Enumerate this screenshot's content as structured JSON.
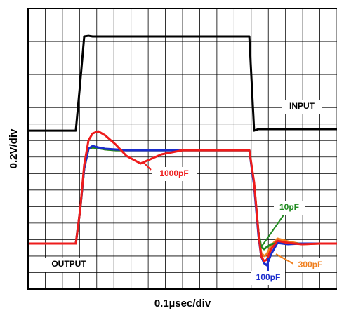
{
  "chart_data": {
    "type": "line",
    "x_label": "0.1µsec/div",
    "y_label": "0.2V/div",
    "output_label": "OUTPUT",
    "x": [
      0,
      2.78,
      3.03,
      3.27,
      3.52,
      3.76,
      4.09,
      4.5,
      5.11,
      5.73,
      6.55,
      7.77,
      9.0,
      12.89,
      13.17,
      13.42,
      13.58,
      13.75,
      13.91,
      14.16,
      14.53,
      15.14,
      15.96,
      16.98,
      18.0
    ],
    "series": [
      {
        "name": "INPUT",
        "color": "#000000",
        "values": [
          9.6,
          9.6,
          12.41,
          15.3,
          15.34,
          15.3,
          15.3,
          15.3,
          15.3,
          15.3,
          15.3,
          15.3,
          15.3,
          15.3,
          9.6,
          9.69,
          9.69,
          9.69,
          9.69,
          9.69,
          9.69,
          9.69,
          9.69,
          9.69,
          9.69
        ]
      },
      {
        "name": "300pF",
        "color": "#f07f1e",
        "values": [
          2.76,
          2.76,
          4.76,
          7.31,
          8.5,
          8.58,
          8.54,
          8.46,
          8.41,
          8.41,
          8.41,
          8.41,
          8.41,
          8.41,
          6.37,
          3.4,
          2.21,
          2.0,
          2.12,
          2.63,
          3.06,
          2.89,
          2.72,
          2.76,
          2.76
        ]
      },
      {
        "name": "10pF",
        "color": "#1f8a1f",
        "values": [
          2.76,
          2.76,
          4.76,
          7.31,
          8.5,
          8.58,
          8.54,
          8.46,
          8.41,
          8.41,
          8.41,
          8.41,
          8.41,
          8.41,
          6.37,
          3.48,
          2.55,
          2.42,
          2.55,
          2.72,
          2.8,
          2.76,
          2.76,
          2.76,
          2.76
        ]
      },
      {
        "name": "100pF",
        "color": "#1a2ccc",
        "values": [
          2.76,
          2.76,
          4.76,
          7.31,
          8.5,
          8.67,
          8.58,
          8.5,
          8.46,
          8.41,
          8.41,
          8.41,
          8.41,
          8.41,
          6.25,
          3.27,
          2.0,
          1.57,
          1.44,
          2.12,
          2.8,
          2.72,
          2.76,
          2.76,
          2.76
        ]
      },
      {
        "name": "1000pF",
        "color": "#ee1c1c",
        "values": [
          2.76,
          2.76,
          4.76,
          7.52,
          9.01,
          9.43,
          9.56,
          9.31,
          8.75,
          8.07,
          7.61,
          8.16,
          8.41,
          8.41,
          6.46,
          3.48,
          2.0,
          1.7,
          1.78,
          2.42,
          2.93,
          2.8,
          2.72,
          2.76,
          2.76
        ]
      }
    ],
    "xlim": [
      0,
      18
    ],
    "ylim": [
      0,
      17
    ],
    "xticks": [
      0,
      1,
      2,
      3,
      4,
      5,
      6,
      7,
      8,
      9,
      10,
      11,
      12,
      13,
      14,
      15,
      16,
      17,
      18
    ],
    "yticks": [
      0,
      1,
      2,
      3,
      4,
      5,
      6,
      7,
      8,
      9,
      10,
      11,
      12,
      13,
      14,
      15,
      16,
      17
    ],
    "grid": true
  }
}
